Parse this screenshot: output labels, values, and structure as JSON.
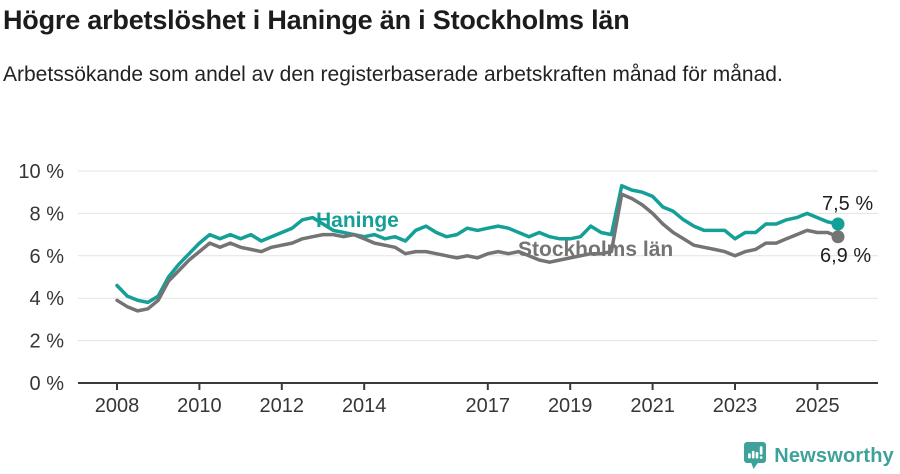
{
  "page": {
    "title": "Högre arbetslöshet i Haninge än i Stockholms län",
    "subtitle": "Arbetssökande som andel av den registerbaserade arbetskraften månad för månad."
  },
  "branding": {
    "logo_text": "Newsworthy",
    "logo_icon": "speech-bubble-bar-chart-icon",
    "logo_color": "#3ea29a"
  },
  "chart_data": {
    "type": "line",
    "title": "Högre arbetslöshet i Haninge än i Stockholms län",
    "subtitle": "Arbetssökande som andel av den registerbaserade arbetskraften månad för månad.",
    "x_unit": "year (monthly share of registered labour force, read quarterly)",
    "ylim": [
      0,
      10
    ],
    "yticks": [
      0,
      2,
      4,
      6,
      8,
      10
    ],
    "ytick_format": "{v} %",
    "ytick_labels": [
      "0 %",
      "2 %",
      "4 %",
      "6 %",
      "8 %",
      "10 %"
    ],
    "xticks": [
      2008,
      2010,
      2012,
      2014,
      2017,
      2019,
      2021,
      2023,
      2025
    ],
    "xtick_labels": [
      "2008",
      "2010",
      "2012",
      "2014",
      "2017",
      "2019",
      "2021",
      "2023",
      "2025"
    ],
    "grid": "horizontal",
    "legend": "inline-labels",
    "x": [
      2008.0,
      2008.25,
      2008.5,
      2008.75,
      2009.0,
      2009.25,
      2009.5,
      2009.75,
      2010.0,
      2010.25,
      2010.5,
      2010.75,
      2011.0,
      2011.25,
      2011.5,
      2011.75,
      2012.0,
      2012.25,
      2012.5,
      2012.75,
      2013.0,
      2013.25,
      2013.5,
      2013.75,
      2014.0,
      2014.25,
      2014.5,
      2014.75,
      2015.0,
      2015.25,
      2015.5,
      2015.75,
      2016.0,
      2016.25,
      2016.5,
      2016.75,
      2017.0,
      2017.25,
      2017.5,
      2017.75,
      2018.0,
      2018.25,
      2018.5,
      2018.75,
      2019.0,
      2019.25,
      2019.5,
      2019.75,
      2020.0,
      2020.25,
      2020.5,
      2020.75,
      2021.0,
      2021.25,
      2021.5,
      2021.75,
      2022.0,
      2022.25,
      2022.5,
      2022.75,
      2023.0,
      2023.25,
      2023.5,
      2023.75,
      2024.0,
      2024.25,
      2024.5,
      2024.75,
      2025.0,
      2025.25,
      2025.5
    ],
    "series": [
      {
        "name": "Haninge",
        "color": "#14a096",
        "end_label": "7,5 %",
        "values": [
          4.6,
          4.1,
          3.9,
          3.8,
          4.1,
          5.0,
          5.6,
          6.1,
          6.6,
          7.0,
          6.8,
          7.0,
          6.8,
          7.0,
          6.7,
          6.9,
          7.1,
          7.3,
          7.7,
          7.8,
          7.5,
          7.2,
          7.1,
          7.0,
          6.9,
          7.0,
          6.8,
          6.9,
          6.7,
          7.2,
          7.4,
          7.1,
          6.9,
          7.0,
          7.3,
          7.2,
          7.3,
          7.4,
          7.3,
          7.1,
          6.9,
          7.1,
          6.9,
          6.8,
          6.8,
          6.9,
          7.4,
          7.1,
          7.0,
          9.3,
          9.1,
          9.0,
          8.8,
          8.3,
          8.1,
          7.7,
          7.4,
          7.2,
          7.2,
          7.2,
          6.8,
          7.1,
          7.1,
          7.5,
          7.5,
          7.7,
          7.8,
          8.0,
          7.8,
          7.6,
          7.5
        ]
      },
      {
        "name": "Stockholms län",
        "color": "#747474",
        "end_label": "6,9 %",
        "values": [
          3.9,
          3.6,
          3.4,
          3.5,
          3.9,
          4.8,
          5.3,
          5.8,
          6.2,
          6.6,
          6.4,
          6.6,
          6.4,
          6.3,
          6.2,
          6.4,
          6.5,
          6.6,
          6.8,
          6.9,
          7.0,
          7.0,
          6.9,
          7.0,
          6.8,
          6.6,
          6.5,
          6.4,
          6.1,
          6.2,
          6.2,
          6.1,
          6.0,
          5.9,
          6.0,
          5.9,
          6.1,
          6.2,
          6.1,
          6.2,
          6.0,
          5.8,
          5.7,
          5.8,
          5.9,
          6.0,
          6.1,
          6.1,
          6.2,
          8.9,
          8.7,
          8.4,
          8.0,
          7.5,
          7.1,
          6.8,
          6.5,
          6.4,
          6.3,
          6.2,
          6.0,
          6.2,
          6.3,
          6.6,
          6.6,
          6.8,
          7.0,
          7.2,
          7.1,
          7.1,
          6.9
        ]
      }
    ]
  }
}
